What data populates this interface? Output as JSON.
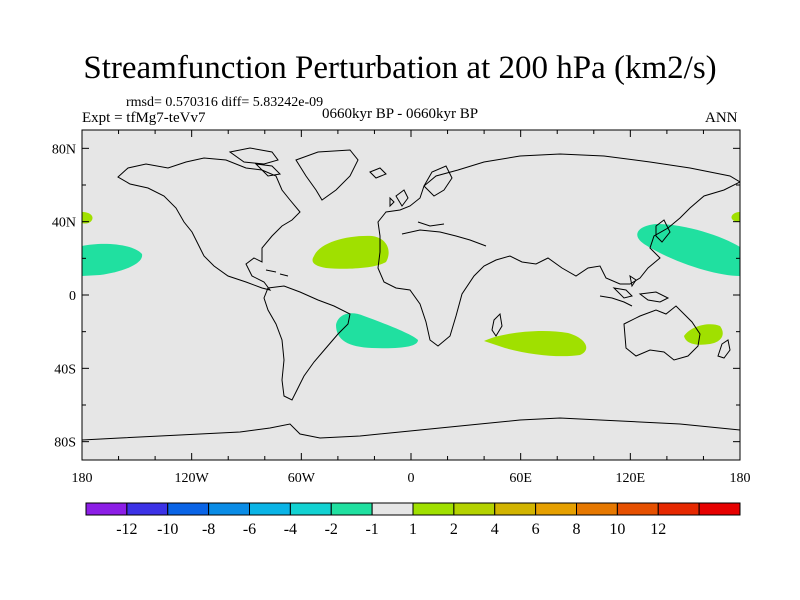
{
  "title": "Streamfunction Perturbation at 200 hPa (km2/s)",
  "stats": "rmsd= 0.570316 diff= 5.83242e-09",
  "expt": "Expt = tfMg7-teVv7",
  "period": "0660kyr BP - 0660kyr BP",
  "season": "ANN",
  "colors": {
    "land_background": "#e6e6e6",
    "coastline": "#000000",
    "positive_anomaly": "#a0e000",
    "negative_anomaly": "#20e0a0"
  },
  "axes": {
    "x_ticks": [
      "180",
      "120W",
      "60W",
      "0",
      "60E",
      "120E",
      "180"
    ],
    "y_ticks": [
      "80N",
      "40N",
      "0",
      "40S",
      "80S"
    ]
  },
  "colorbar": {
    "colors": [
      "#8c1ee6",
      "#3c32e6",
      "#0a64e6",
      "#0a8ce6",
      "#0ab4e6",
      "#12d2d2",
      "#20e0a0",
      "#e6e6e6",
      "#a0e000",
      "#b4d200",
      "#d2b400",
      "#e6a000",
      "#e67800",
      "#e65000",
      "#e62800",
      "#e60000"
    ],
    "labels": [
      "-12",
      "-10",
      "-8",
      "-6",
      "-4",
      "-2",
      "-1",
      "1",
      "2",
      "4",
      "6",
      "8",
      "10",
      "12"
    ]
  }
}
